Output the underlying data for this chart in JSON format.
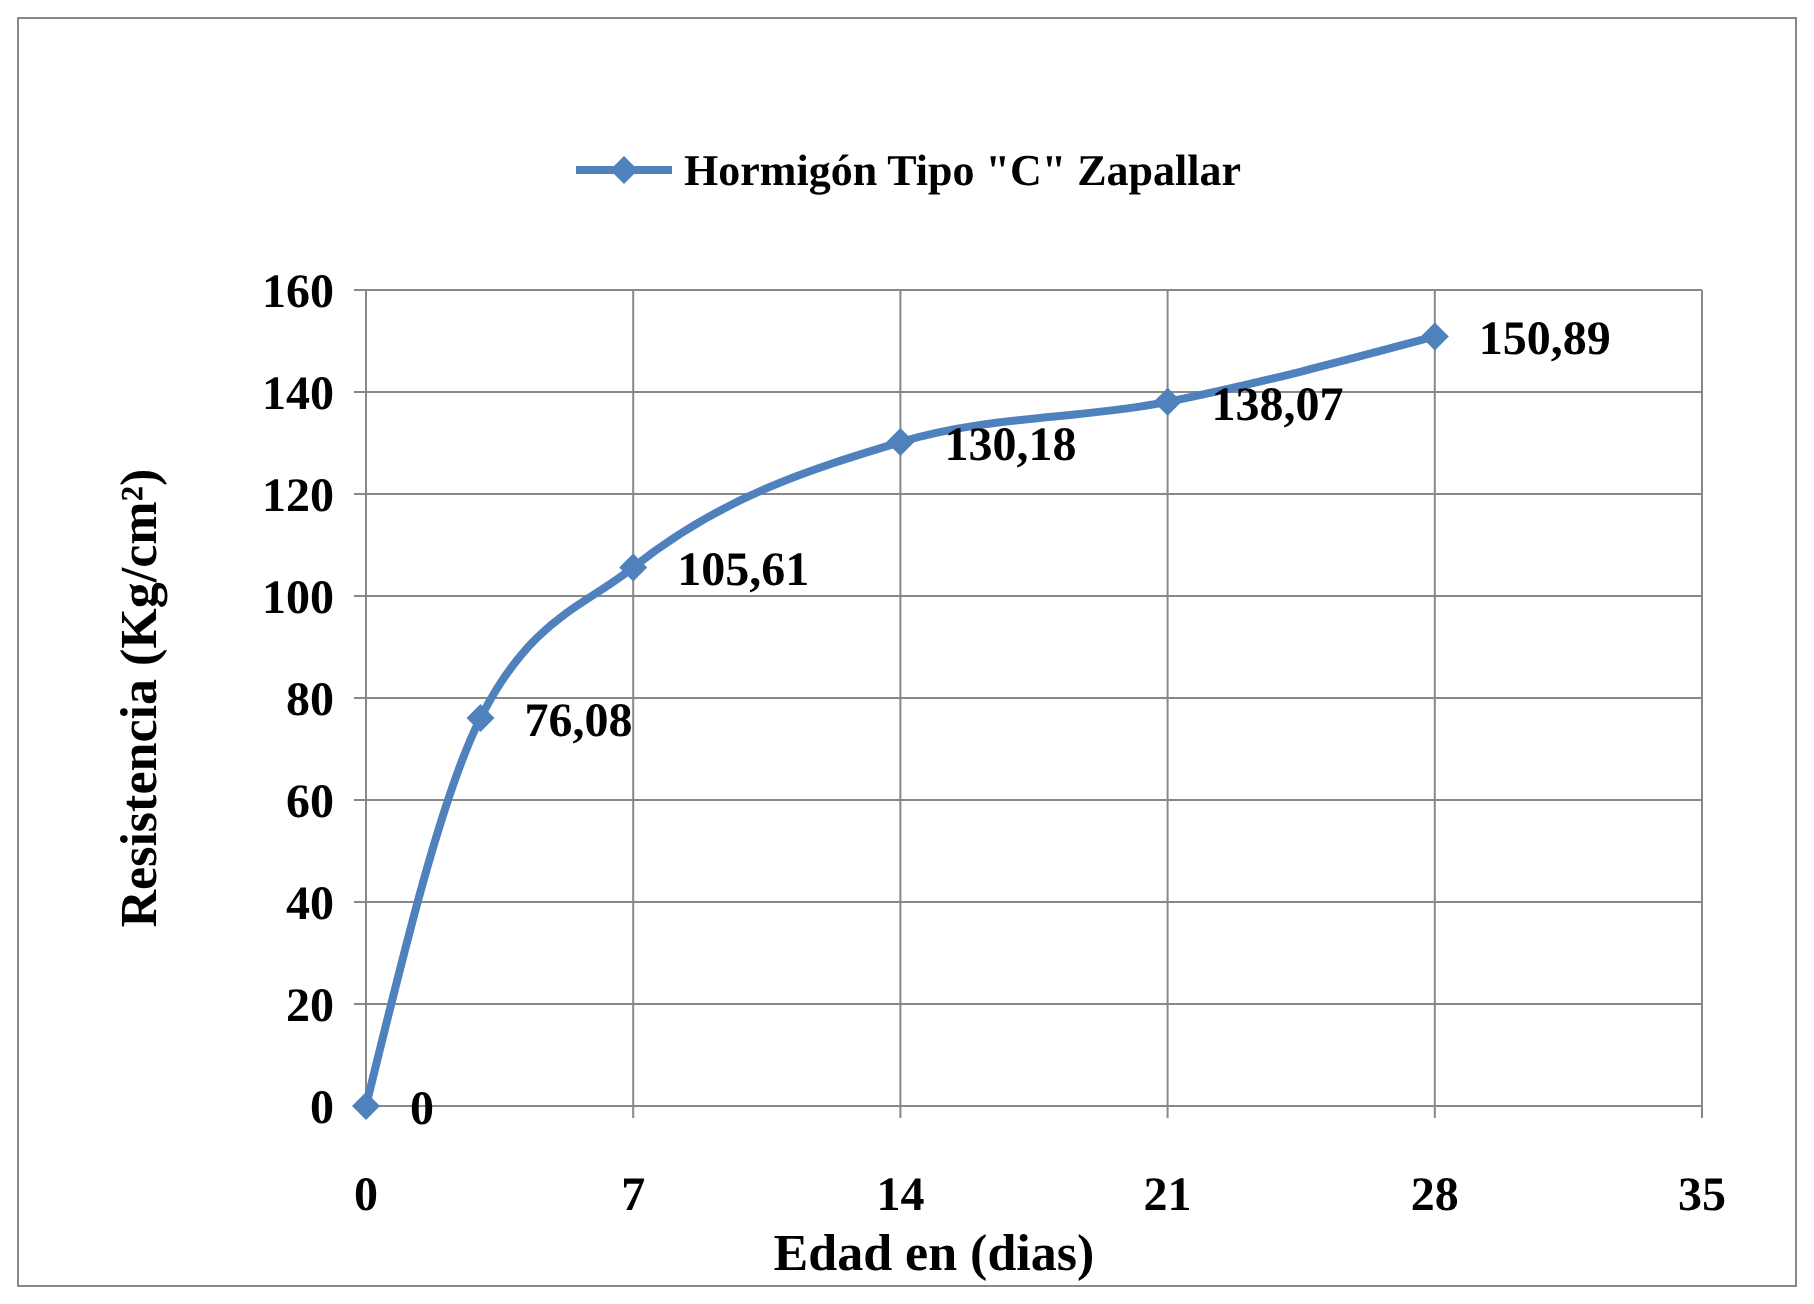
{
  "chart_data": {
    "type": "line",
    "xlabel": "Edad en (dias)",
    "ylabel": "Resistencia (Kg/cm²)",
    "x": [
      0,
      3,
      7,
      14,
      21,
      28
    ],
    "series": [
      {
        "name": "Hormigón Tipo \"C\" Zapallar",
        "color": "#4f81bd",
        "values": [
          0,
          76.08,
          105.61,
          130.18,
          138.07,
          150.89
        ],
        "value_labels": [
          "0",
          "76,08",
          "105,61",
          "130,18",
          "138,07",
          "150,89"
        ]
      }
    ],
    "xlim": [
      0,
      35
    ],
    "xticks": [
      0,
      7,
      14,
      21,
      28,
      35
    ],
    "ylim": [
      0,
      160
    ],
    "yticks": [
      0,
      20,
      40,
      60,
      80,
      100,
      120,
      140,
      160
    ],
    "grid": true,
    "legend": "top",
    "marker": "diamond",
    "line_style": "solid"
  }
}
